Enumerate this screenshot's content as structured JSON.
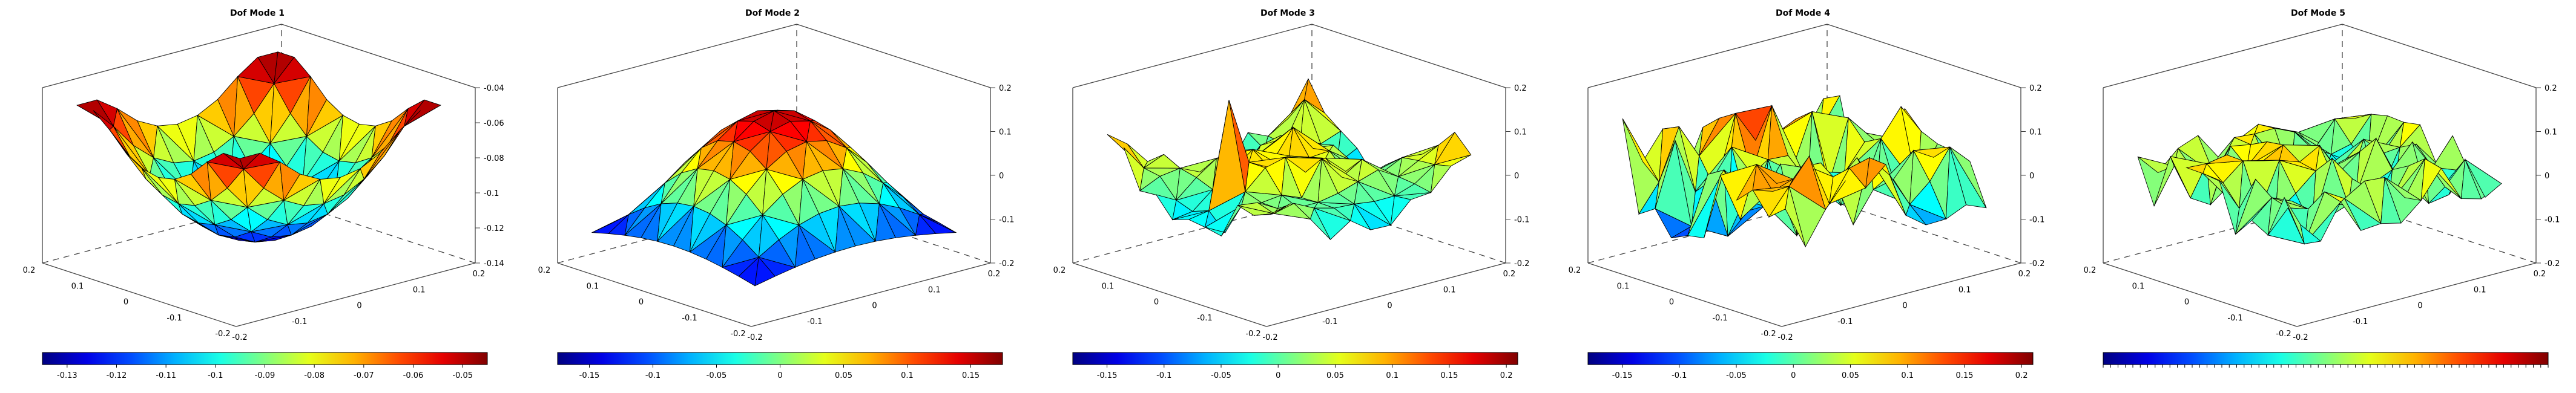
{
  "chart_data": [
    {
      "type": "surface3d",
      "title": "Dof Mode 1",
      "xticks": [
        "0.2",
        "0.1",
        "0",
        "-0.1",
        "-0.2"
      ],
      "yticks": [
        "-0.2",
        "-0.1",
        "0",
        "0.1",
        "0.2"
      ],
      "zticks": [
        "-0.04",
        "-0.06",
        "-0.08",
        "-0.1",
        "-0.12",
        "-0.14"
      ],
      "colorbar": {
        "ticks": [
          "-0.13",
          "-0.12",
          "-0.11",
          "-0.1",
          "-0.09",
          "-0.08",
          "-0.07",
          "-0.06",
          "-0.05"
        ],
        "range": [
          -0.135,
          -0.045
        ]
      },
      "shape": "bowl",
      "zrange": [
        -0.14,
        -0.04
      ]
    },
    {
      "type": "surface3d",
      "title": "Dof Mode 2",
      "xticks": [
        "0.2",
        "0.1",
        "0",
        "-0.1",
        "-0.2"
      ],
      "yticks": [
        "-0.2",
        "-0.1",
        "0",
        "0.1",
        "0.2"
      ],
      "zticks": [
        "0.2",
        "0.1",
        "0",
        "-0.1",
        "-0.2"
      ],
      "colorbar": {
        "ticks": [
          "-0.15",
          "-0.1",
          "-0.05",
          "0",
          "0.05",
          "0.1",
          "0.15"
        ],
        "range": [
          -0.175,
          0.175
        ]
      },
      "shape": "dome",
      "zrange": [
        -0.2,
        0.2
      ]
    },
    {
      "type": "surface3d",
      "title": "Dof Mode 3",
      "xticks": [
        "0.2",
        "0.1",
        "0",
        "-0.1",
        "-0.2"
      ],
      "yticks": [
        "-0.2",
        "-0.1",
        "0",
        "0.1",
        "0.2"
      ],
      "zticks": [
        "0.2",
        "0.1",
        "0",
        "-0.1",
        "-0.2"
      ],
      "colorbar": {
        "ticks": [
          "-0.15",
          "-0.1",
          "-0.05",
          "0",
          "0.05",
          "0.1",
          "0.15",
          "0.2"
        ],
        "range": [
          -0.18,
          0.21
        ]
      },
      "shape": "wave",
      "zrange": [
        -0.2,
        0.2
      ]
    },
    {
      "type": "surface3d",
      "title": "Dof Mode 4",
      "xticks": [
        "0.2",
        "0.1",
        "0",
        "-0.1",
        "-0.2"
      ],
      "yticks": [
        "-0.2",
        "-0.1",
        "0",
        "0.1",
        "0.2"
      ],
      "zticks": [
        "0.2",
        "0.1",
        "0",
        "-0.1",
        "-0.2"
      ],
      "colorbar": {
        "ticks": [
          "-0.15",
          "-0.1",
          "-0.05",
          "0",
          "0.05",
          "0.1",
          "0.15",
          "0.2"
        ],
        "range": [
          -0.18,
          0.21
        ]
      },
      "shape": "spiky",
      "zrange": [
        -0.2,
        0.2
      ]
    },
    {
      "type": "surface3d",
      "title": "Dof Mode 5",
      "xticks": [
        "0.2",
        "0.1",
        "0",
        "-0.1",
        "-0.2"
      ],
      "yticks": [
        "-0.2",
        "-0.1",
        "0",
        "0.1",
        "0.2"
      ],
      "zticks": [
        "0.2",
        "0.1",
        "0",
        "-0.1",
        "-0.2"
      ],
      "colorbar": {
        "ticks": [],
        "range": [
          -0.2,
          0.2
        ]
      },
      "shape": "rough",
      "zrange": [
        -0.2,
        0.2
      ]
    }
  ]
}
